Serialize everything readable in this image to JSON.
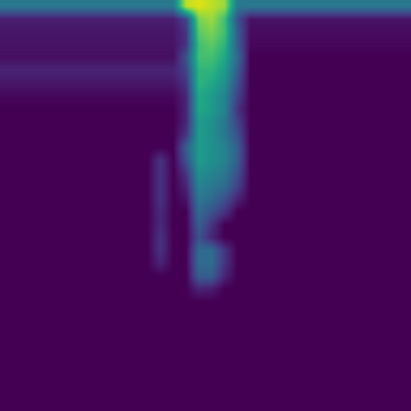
{
  "chart_data": {
    "type": "heatmap",
    "color": "viridis",
    "tick_labels": false,
    "color_range": [
      0,
      100
    ],
    "cells": [
      [
        40,
        40,
        40,
        40,
        40,
        40,
        40,
        40,
        40,
        40,
        40,
        40,
        40,
        40,
        90,
        95,
        90,
        85,
        40,
        40,
        40,
        40,
        40,
        40,
        40,
        40,
        40,
        40,
        40,
        40,
        40,
        40
      ],
      [
        8,
        8,
        8,
        8,
        8,
        8,
        8,
        8,
        8,
        8,
        8,
        8,
        8,
        8,
        20,
        80,
        85,
        70,
        25,
        5,
        5,
        5,
        5,
        5,
        5,
        5,
        5,
        5,
        5,
        5,
        5,
        5
      ],
      [
        6,
        6,
        6,
        6,
        6,
        6,
        6,
        6,
        6,
        6,
        6,
        6,
        6,
        6,
        15,
        75,
        80,
        70,
        30,
        3,
        3,
        3,
        3,
        3,
        3,
        3,
        3,
        3,
        3,
        3,
        3,
        3
      ],
      [
        5,
        5,
        5,
        5,
        5,
        5,
        5,
        5,
        5,
        5,
        5,
        5,
        5,
        5,
        15,
        70,
        75,
        65,
        30,
        2,
        2,
        2,
        2,
        2,
        2,
        2,
        2,
        2,
        2,
        2,
        2,
        2
      ],
      [
        4,
        4,
        4,
        4,
        4,
        4,
        4,
        4,
        4,
        4,
        4,
        4,
        4,
        4,
        25,
        70,
        70,
        60,
        35,
        0,
        0,
        0,
        0,
        0,
        0,
        0,
        0,
        0,
        0,
        0,
        0,
        0
      ],
      [
        10,
        10,
        10,
        10,
        10,
        10,
        10,
        10,
        10,
        10,
        10,
        10,
        10,
        10,
        20,
        65,
        65,
        55,
        30,
        0,
        0,
        0,
        0,
        0,
        0,
        0,
        0,
        0,
        0,
        0,
        0,
        0
      ],
      [
        6,
        6,
        6,
        6,
        6,
        6,
        6,
        6,
        6,
        6,
        6,
        6,
        6,
        6,
        15,
        65,
        60,
        50,
        25,
        0,
        0,
        0,
        0,
        0,
        0,
        0,
        0,
        0,
        0,
        0,
        0,
        0
      ],
      [
        2,
        2,
        2,
        2,
        2,
        2,
        2,
        2,
        2,
        2,
        2,
        2,
        2,
        2,
        10,
        60,
        55,
        45,
        20,
        0,
        0,
        0,
        0,
        0,
        0,
        0,
        0,
        0,
        0,
        0,
        0,
        0
      ],
      [
        0,
        0,
        0,
        0,
        0,
        0,
        0,
        0,
        0,
        0,
        0,
        0,
        0,
        0,
        10,
        60,
        55,
        45,
        15,
        0,
        0,
        0,
        0,
        0,
        0,
        0,
        0,
        0,
        0,
        0,
        0,
        0
      ],
      [
        0,
        0,
        0,
        0,
        0,
        0,
        0,
        0,
        0,
        0,
        0,
        0,
        0,
        0,
        10,
        55,
        50,
        40,
        20,
        0,
        0,
        0,
        0,
        0,
        0,
        0,
        0,
        0,
        0,
        0,
        0,
        0
      ],
      [
        0,
        0,
        0,
        0,
        0,
        0,
        0,
        0,
        0,
        0,
        0,
        0,
        0,
        0,
        15,
        55,
        50,
        40,
        25,
        0,
        0,
        0,
        0,
        0,
        0,
        0,
        0,
        0,
        0,
        0,
        0,
        0
      ],
      [
        0,
        0,
        0,
        0,
        0,
        0,
        0,
        0,
        0,
        0,
        0,
        0,
        0,
        0,
        30,
        55,
        50,
        45,
        30,
        0,
        0,
        0,
        0,
        0,
        0,
        0,
        0,
        0,
        0,
        0,
        0,
        0
      ],
      [
        0,
        0,
        0,
        0,
        0,
        0,
        0,
        0,
        0,
        0,
        0,
        0,
        15,
        0,
        25,
        55,
        50,
        45,
        30,
        0,
        0,
        0,
        0,
        0,
        0,
        0,
        0,
        0,
        0,
        0,
        0,
        0
      ],
      [
        0,
        0,
        0,
        0,
        0,
        0,
        0,
        0,
        0,
        0,
        0,
        0,
        15,
        0,
        15,
        50,
        45,
        40,
        25,
        0,
        0,
        0,
        0,
        0,
        0,
        0,
        0,
        0,
        0,
        0,
        0,
        0
      ],
      [
        0,
        0,
        0,
        0,
        0,
        0,
        0,
        0,
        0,
        0,
        0,
        0,
        15,
        0,
        10,
        45,
        40,
        35,
        20,
        0,
        0,
        0,
        0,
        0,
        0,
        0,
        0,
        0,
        0,
        0,
        0,
        0
      ],
      [
        0,
        0,
        0,
        0,
        0,
        0,
        0,
        0,
        0,
        0,
        0,
        0,
        15,
        0,
        5,
        40,
        35,
        25,
        10,
        0,
        0,
        0,
        0,
        0,
        0,
        0,
        0,
        0,
        0,
        0,
        0,
        0
      ],
      [
        0,
        0,
        0,
        0,
        0,
        0,
        0,
        0,
        0,
        0,
        0,
        0,
        12,
        0,
        0,
        35,
        25,
        15,
        0,
        0,
        0,
        0,
        0,
        0,
        0,
        0,
        0,
        0,
        0,
        0,
        0,
        0
      ],
      [
        0,
        0,
        0,
        0,
        0,
        0,
        0,
        0,
        0,
        0,
        0,
        0,
        12,
        0,
        0,
        30,
        15,
        0,
        0,
        0,
        0,
        0,
        0,
        0,
        0,
        0,
        0,
        0,
        0,
        0,
        0,
        0
      ],
      [
        0,
        0,
        0,
        0,
        0,
        0,
        0,
        0,
        0,
        0,
        0,
        0,
        15,
        0,
        0,
        25,
        10,
        0,
        0,
        0,
        0,
        0,
        0,
        0,
        0,
        0,
        0,
        0,
        0,
        0,
        0,
        0
      ],
      [
        0,
        0,
        0,
        0,
        0,
        0,
        0,
        0,
        0,
        0,
        0,
        0,
        15,
        0,
        0,
        35,
        35,
        15,
        0,
        0,
        0,
        0,
        0,
        0,
        0,
        0,
        0,
        0,
        0,
        0,
        0,
        0
      ],
      [
        0,
        0,
        0,
        0,
        0,
        0,
        0,
        0,
        0,
        0,
        0,
        0,
        10,
        0,
        0,
        35,
        35,
        15,
        0,
        0,
        0,
        0,
        0,
        0,
        0,
        0,
        0,
        0,
        0,
        0,
        0,
        0
      ],
      [
        0,
        0,
        0,
        0,
        0,
        0,
        0,
        0,
        0,
        0,
        0,
        0,
        0,
        0,
        0,
        30,
        30,
        10,
        0,
        0,
        0,
        0,
        0,
        0,
        0,
        0,
        0,
        0,
        0,
        0,
        0,
        0
      ],
      [
        0,
        0,
        0,
        0,
        0,
        0,
        0,
        0,
        0,
        0,
        0,
        0,
        0,
        0,
        0,
        10,
        8,
        0,
        0,
        0,
        0,
        0,
        0,
        0,
        0,
        0,
        0,
        0,
        0,
        0,
        0,
        0
      ],
      [
        0,
        0,
        0,
        0,
        0,
        0,
        0,
        0,
        0,
        0,
        0,
        0,
        0,
        0,
        0,
        0,
        0,
        0,
        0,
        0,
        0,
        0,
        0,
        0,
        0,
        0,
        0,
        0,
        0,
        0,
        0,
        0
      ],
      [
        0,
        0,
        0,
        0,
        0,
        0,
        0,
        0,
        0,
        0,
        0,
        0,
        0,
        0,
        0,
        0,
        0,
        0,
        0,
        0,
        0,
        0,
        0,
        0,
        0,
        0,
        0,
        0,
        0,
        0,
        0,
        0
      ],
      [
        0,
        0,
        0,
        0,
        0,
        0,
        0,
        0,
        0,
        0,
        0,
        0,
        0,
        0,
        0,
        0,
        0,
        0,
        0,
        0,
        0,
        0,
        0,
        0,
        0,
        0,
        0,
        0,
        0,
        0,
        0,
        0
      ],
      [
        0,
        0,
        0,
        0,
        0,
        0,
        0,
        0,
        0,
        0,
        0,
        0,
        0,
        0,
        0,
        0,
        0,
        0,
        0,
        0,
        0,
        0,
        0,
        0,
        0,
        0,
        0,
        0,
        0,
        0,
        0,
        0
      ],
      [
        0,
        0,
        0,
        0,
        0,
        0,
        0,
        0,
        0,
        0,
        0,
        0,
        0,
        0,
        0,
        0,
        0,
        0,
        0,
        0,
        0,
        0,
        0,
        0,
        0,
        0,
        0,
        0,
        0,
        0,
        0,
        0
      ],
      [
        0,
        0,
        0,
        0,
        0,
        0,
        0,
        0,
        0,
        0,
        0,
        0,
        0,
        0,
        0,
        0,
        0,
        0,
        0,
        0,
        0,
        0,
        0,
        0,
        0,
        0,
        0,
        0,
        0,
        0,
        0,
        0
      ],
      [
        0,
        0,
        0,
        0,
        0,
        0,
        0,
        0,
        0,
        0,
        0,
        0,
        0,
        0,
        0,
        0,
        0,
        0,
        0,
        0,
        0,
        0,
        0,
        0,
        0,
        0,
        0,
        0,
        0,
        0,
        0,
        0
      ],
      [
        0,
        0,
        0,
        0,
        0,
        0,
        0,
        0,
        0,
        0,
        0,
        0,
        0,
        0,
        0,
        0,
        0,
        0,
        0,
        0,
        0,
        0,
        0,
        0,
        0,
        0,
        0,
        0,
        0,
        0,
        0,
        0
      ],
      [
        0,
        0,
        0,
        0,
        0,
        0,
        0,
        0,
        0,
        0,
        0,
        0,
        0,
        0,
        0,
        0,
        0,
        0,
        0,
        0,
        0,
        0,
        0,
        0,
        0,
        0,
        0,
        0,
        0,
        0,
        0,
        0
      ]
    ]
  }
}
